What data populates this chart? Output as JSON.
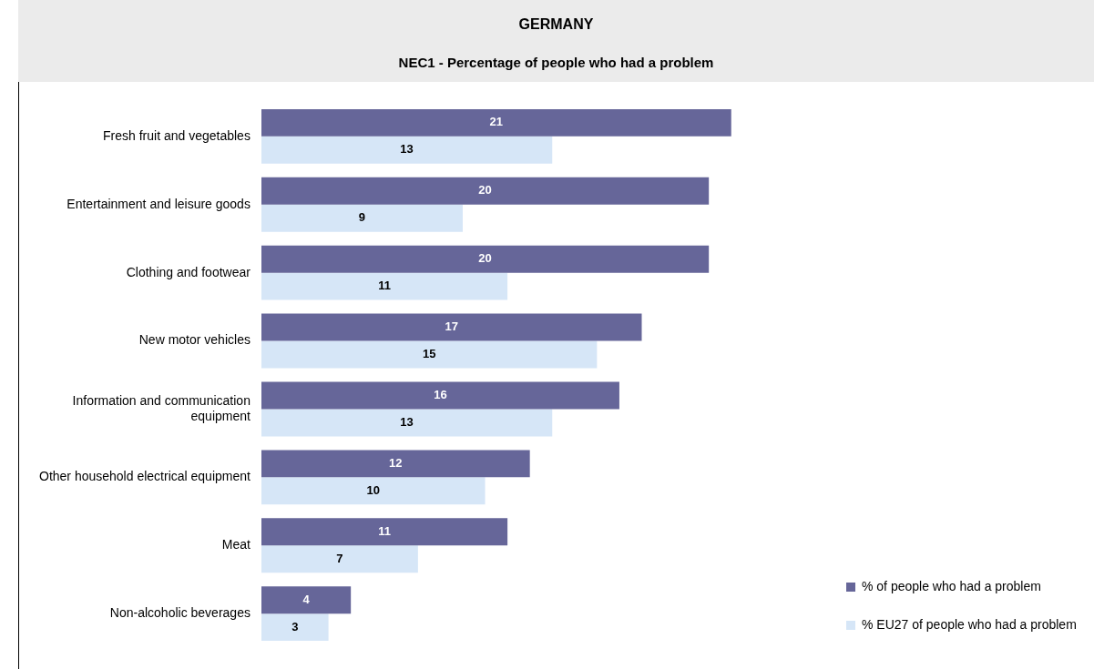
{
  "chart_data": {
    "type": "bar",
    "orientation": "horizontal",
    "title": "GERMANY",
    "subtitle": "NEC1 - Percentage of people who had a problem",
    "categories": [
      "Fresh fruit and vegetables",
      "Entertainment and leisure goods",
      "Clothing and footwear",
      "New motor vehicles",
      "Information and communication equipment",
      "Other household electrical equipment",
      "Meat",
      "Non-alcoholic beverages"
    ],
    "series": [
      {
        "name": "% of people who had a problem",
        "color": "#666699",
        "values": [
          21,
          20,
          20,
          17,
          16,
          12,
          11,
          4
        ]
      },
      {
        "name": "% EU27 of people who had a problem",
        "color": "#d6e6f7",
        "values": [
          13,
          9,
          11,
          15,
          13,
          10,
          7,
          3
        ]
      }
    ],
    "data_labels": true,
    "legend": "bottom right",
    "grid": false
  }
}
